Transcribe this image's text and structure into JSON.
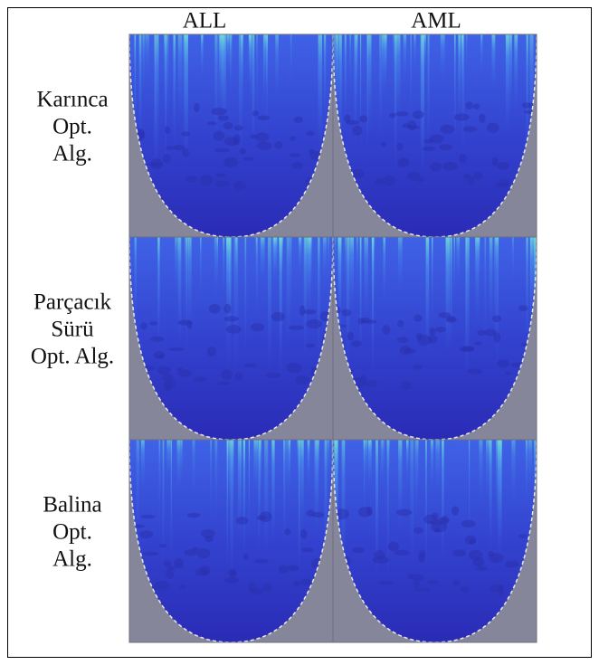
{
  "columns": [
    "ALL",
    "AML"
  ],
  "rows": [
    {
      "label_lines": [
        "Karınca",
        "Opt.",
        "Alg."
      ]
    },
    {
      "label_lines": [
        "Parçacık",
        "Sürü",
        "Opt. Alg."
      ]
    },
    {
      "label_lines": [
        "Balina",
        "Opt.",
        "Alg."
      ]
    }
  ]
}
